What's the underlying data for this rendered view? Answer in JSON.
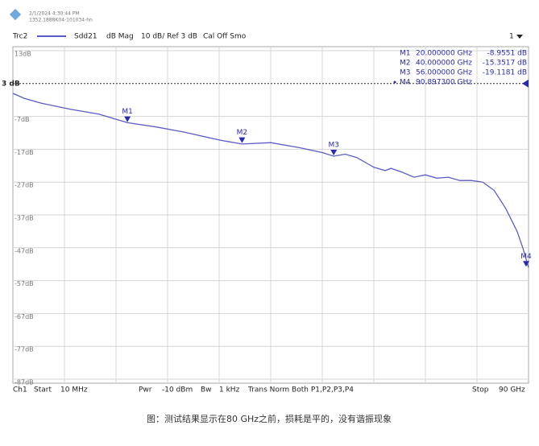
{
  "header": {
    "timestamp": "2/1/2024 4:30:44 PM",
    "device_id": "1352.1888K04-101034-hn",
    "parameter": "Sdd21",
    "format": "dB Mag",
    "scale": "10 dB/ Ref 3 dB",
    "calibration": "Cal Off Smo",
    "channel_select": "1"
  },
  "chart_data": {
    "type": "line",
    "x": [
      0.01,
      2,
      5,
      10,
      15,
      20,
      25,
      30,
      35,
      37,
      40,
      45,
      50,
      54,
      56,
      58,
      60,
      63,
      65,
      66,
      68,
      70,
      72,
      74,
      76,
      78,
      80,
      82,
      84,
      86,
      88,
      89,
      90
    ],
    "series": [
      {
        "name": "Trc2",
        "color": "#5c5cc8",
        "values": [
          0,
          -1.5,
          -3,
          -4.8,
          -6.3,
          -8.9,
          -10.2,
          -11.8,
          -13.8,
          -14.5,
          -15.4,
          -15.0,
          -16.5,
          -18,
          -19.1,
          -18.5,
          -19.5,
          -22.5,
          -23.5,
          -22.8,
          -24,
          -25.5,
          -24.8,
          -25.8,
          -25.5,
          -26.5,
          -26.5,
          -27,
          -29.5,
          -35,
          -42,
          -47,
          -53
        ]
      }
    ],
    "xlim": [
      0.01,
      90
    ],
    "ylim": [
      -87,
      13
    ],
    "yticks": [
      {
        "value": 13,
        "label": "13dB"
      },
      {
        "value": -7,
        "label": "-7dB"
      },
      {
        "value": -17,
        "label": "-17dB"
      },
      {
        "value": -27,
        "label": "-27dB"
      },
      {
        "value": -37,
        "label": "-37dB"
      },
      {
        "value": -47,
        "label": "-47dB"
      },
      {
        "value": -57,
        "label": "-57dB"
      },
      {
        "value": -67,
        "label": "-67dB"
      },
      {
        "value": -77,
        "label": "-77dB"
      },
      {
        "value": -87,
        "label": "-87dB"
      }
    ],
    "reference_level": {
      "value": 3,
      "label": "3 dB"
    },
    "grid": true,
    "markers": [
      {
        "name": "M1",
        "x": 20,
        "x_label": "20.000000 GHz",
        "y": -8.9551,
        "y_label": "-8.9551 dB"
      },
      {
        "name": "M2",
        "x": 40,
        "x_label": "40.000000 GHz",
        "y": -15.3517,
        "y_label": "-15.3517 dB"
      },
      {
        "name": "M3",
        "x": 56,
        "x_label": "56.000000 GHz",
        "y": -19.1181,
        "y_label": "-19.1181 dB"
      },
      {
        "name": "M4",
        "x": 90.8973,
        "x_label": "90.897300 GHz",
        "y": -53
      }
    ]
  },
  "footer": {
    "channel": "Ch1",
    "start_label": "Start",
    "start_value": "10 MHz",
    "power": "Pwr",
    "power_value": "-10 dBm",
    "bandwidth": "Bw",
    "bandwidth_value": "1 kHz",
    "mode": "Trans Norm Both P1,P2,P3,P4",
    "stop_label": "Stop",
    "stop_value": "90 GHz"
  },
  "caption": "图：测试结果显示在80 GHz之前，损耗是平的，没有谐振现象"
}
